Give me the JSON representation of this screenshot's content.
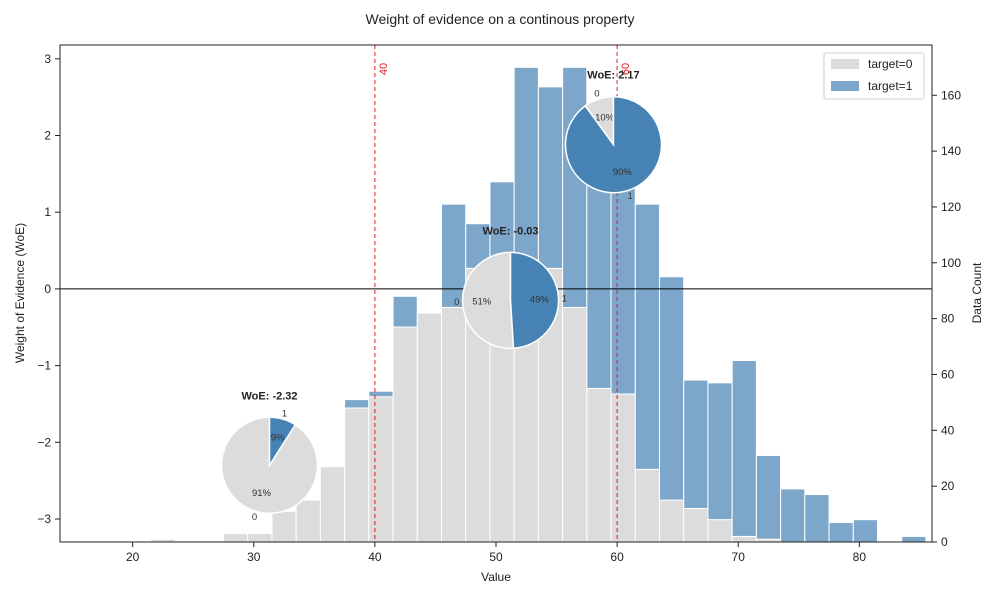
{
  "chart_data": {
    "type": "bar",
    "title": "Weight of evidence on a continous property",
    "xlabel": "Value",
    "ylabel_left": "Weight of Evidence (WoE)",
    "ylabel_right": "Data Count",
    "xlim": [
      14,
      86
    ],
    "ylim_left": [
      -3.3,
      3.18
    ],
    "ylim_right": [
      0,
      178
    ],
    "x_ticks": [
      20,
      30,
      40,
      50,
      60,
      70,
      80
    ],
    "y_left_ticks": [
      -3,
      -2,
      -1,
      0,
      1,
      2,
      3
    ],
    "y_right_ticks": [
      0,
      20,
      40,
      60,
      80,
      100,
      120,
      140,
      160
    ],
    "bin_width": 2,
    "bin_edges_start": 19.5,
    "legend": {
      "placement": "top-right",
      "entries": [
        "target=0",
        "target=1"
      ]
    },
    "colors": {
      "target0": "#dcdcdc",
      "target1": "#4682b4",
      "cut": "#e31a1c"
    },
    "series": [
      {
        "name": "target=0",
        "values": [
          0,
          1,
          0,
          0,
          3,
          3,
          11,
          15,
          27,
          48,
          52,
          77,
          82,
          84,
          98,
          98,
          101,
          98,
          84,
          55,
          53,
          26,
          15,
          12,
          8,
          2,
          1,
          0,
          0,
          0,
          0,
          0,
          0,
          0,
          0
        ]
      },
      {
        "name": "target=1",
        "values": [
          0,
          0,
          0,
          0,
          0,
          0,
          0,
          0,
          0,
          3,
          2,
          11,
          0,
          37,
          16,
          31,
          69,
          65,
          86,
          100,
          98,
          95,
          80,
          46,
          49,
          63,
          30,
          19,
          17,
          7,
          8,
          0,
          2,
          0,
          0
        ]
      }
    ],
    "cutoffs": [
      {
        "x": 40,
        "label": "40"
      },
      {
        "x": 60,
        "label": "60"
      }
    ],
    "pies": [
      {
        "title": "WoE: -2.32",
        "center": [
          31.3,
          -2.3
        ],
        "slices": [
          {
            "category": "0",
            "pct": 91,
            "pct_label": "91%"
          },
          {
            "category": "1",
            "pct": 9,
            "pct_label": "9%"
          }
        ]
      },
      {
        "title": "WoE: -0.03",
        "center": [
          51.2,
          -0.15
        ],
        "slices": [
          {
            "category": "0",
            "pct": 51,
            "pct_label": "51%"
          },
          {
            "category": "1",
            "pct": 49,
            "pct_label": "49%"
          }
        ]
      },
      {
        "title": "WoE: 2.17",
        "center": [
          59.7,
          1.88
        ],
        "slices": [
          {
            "category": "0",
            "pct": 10,
            "pct_label": "10%"
          },
          {
            "category": "1",
            "pct": 90,
            "pct_label": "90%"
          }
        ]
      }
    ]
  }
}
